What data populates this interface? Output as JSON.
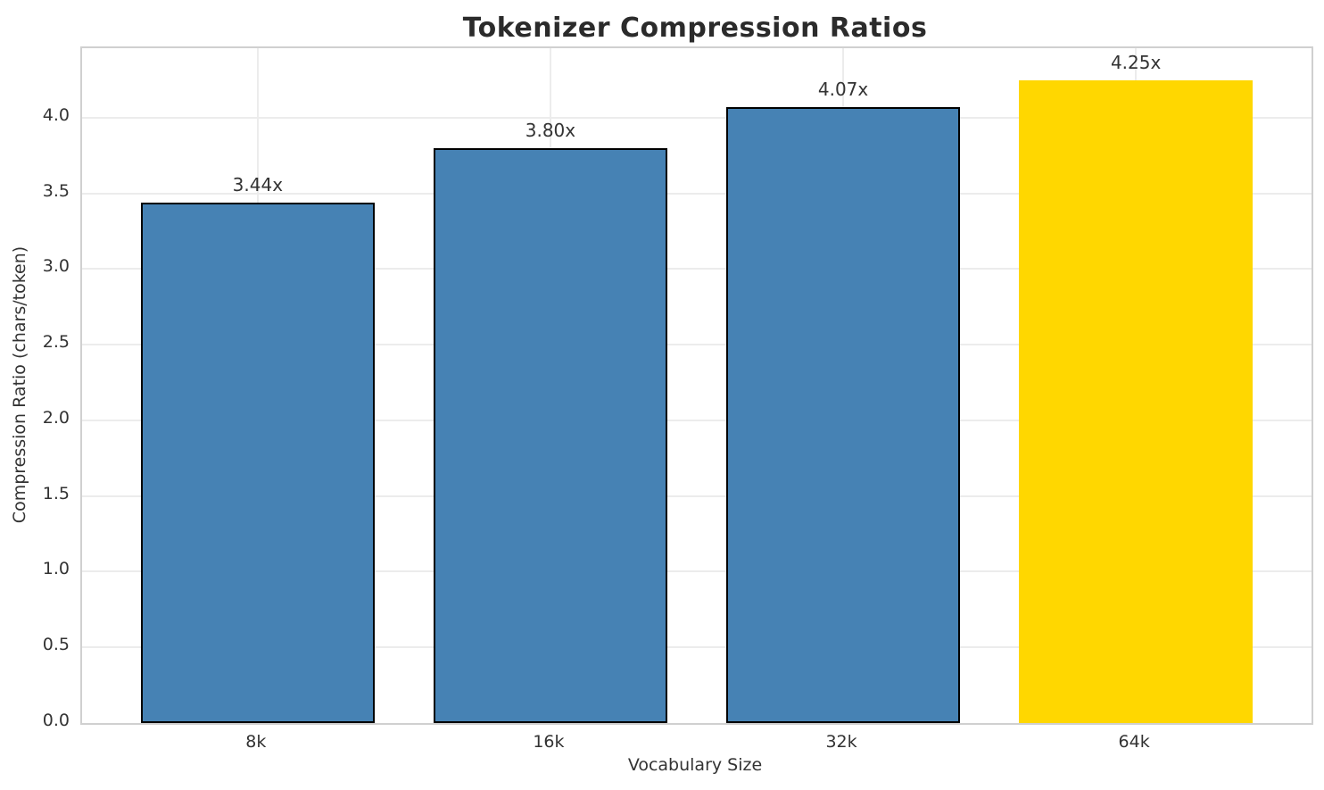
{
  "chart_data": {
    "type": "bar",
    "title": "Tokenizer Compression Ratios",
    "xlabel": "Vocabulary Size",
    "ylabel": "Compression Ratio (chars/token)",
    "categories": [
      "8k",
      "16k",
      "32k",
      "64k"
    ],
    "values": [
      3.44,
      3.8,
      4.07,
      4.25
    ],
    "bar_labels": [
      "3.44x",
      "3.80x",
      "4.07x",
      "4.25x"
    ],
    "bar_colors": [
      "#4682B4",
      "#4682B4",
      "#4682B4",
      "#FFD700"
    ],
    "bar_edge_colors": [
      "#000000",
      "#000000",
      "#000000",
      "none"
    ],
    "yticks": [
      0.0,
      0.5,
      1.0,
      1.5,
      2.0,
      2.5,
      3.0,
      3.5,
      4.0
    ],
    "ytick_labels": [
      "0.0",
      "0.5",
      "1.0",
      "1.5",
      "2.0",
      "2.5",
      "3.0",
      "3.5",
      "4.0"
    ],
    "ylim": [
      0,
      4.46
    ],
    "grid": true,
    "legend": "none",
    "colors": {
      "bar_default": "#4682B4",
      "bar_highlight": "#FFD700",
      "grid": "#ececec",
      "spine": "#d0d0d0",
      "title_text": "#2b2b2b",
      "tick_text": "#333333"
    }
  }
}
